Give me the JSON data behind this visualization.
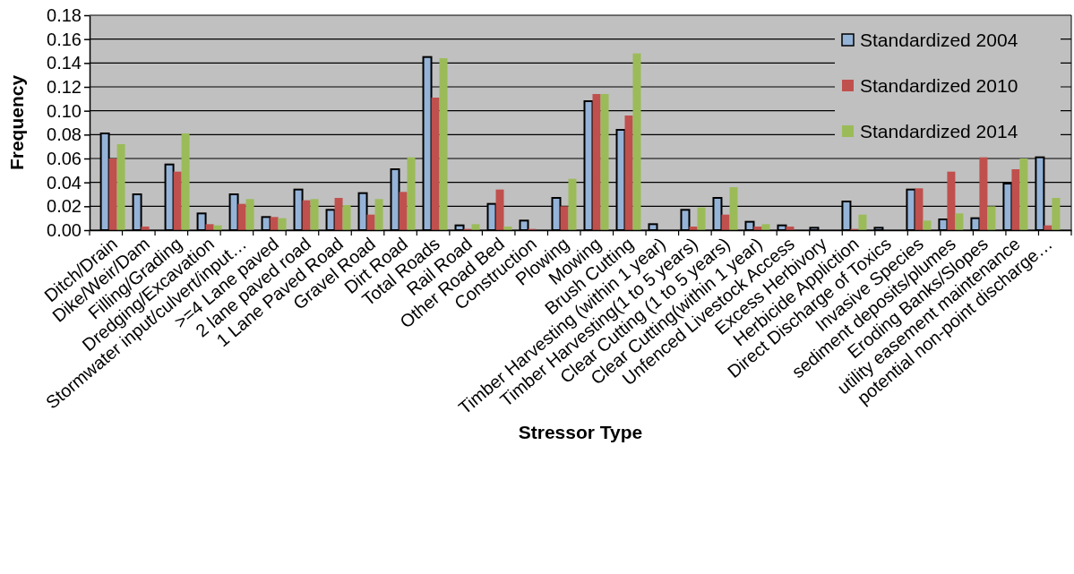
{
  "chart_data": {
    "type": "bar",
    "xlabel": "Stressor Type",
    "ylabel": "Frequency",
    "categories": [
      "Ditch/Drain",
      "Dike/Weir/Dam",
      "Filling/Grading",
      "Dredging/Excavation",
      "Stormwater input/culvert/input…",
      ">=4 Lane paved",
      "2 lane paved road",
      "1 Lane Paved Road",
      "Gravel Road",
      "Dirt Road",
      "Total Roads",
      "Rail Road",
      "Other Road Bed",
      "Construction",
      "Plowing",
      "Mowing",
      "Brush Cutting",
      "Timber Harvesting (within 1 year)",
      "Timber Harvesting(1 to 5 years)",
      "Clear Cutting (1 to 5 years)",
      "Clear Cutting(within 1 year)",
      "Unfenced Livestock Access",
      "Excess Herbivory",
      "Herbicide Appliction",
      "Direct Discharge of Toxics",
      "Invasive Species",
      "sediment deposits/plumes",
      "Eroding Banks/Slopes",
      "utility easement maintenance",
      "potential non-point discharge…"
    ],
    "series": [
      {
        "name": "Standardized 2004",
        "color": "#95b3d7",
        "values": [
          0.081,
          0.03,
          0.055,
          0.014,
          0.03,
          0.011,
          0.034,
          0.017,
          0.031,
          0.051,
          0.145,
          0.004,
          0.022,
          0.008,
          0.027,
          0.108,
          0.084,
          0.005,
          0.017,
          0.027,
          0.007,
          0.004,
          0.002,
          0.024,
          0.002,
          0.034,
          0.009,
          0.01,
          0.039,
          0.061
        ]
      },
      {
        "name": "Standardized 2010",
        "color": "#c0504d",
        "values": [
          0.06,
          0.003,
          0.049,
          0.005,
          0.022,
          0.011,
          0.025,
          0.027,
          0.013,
          0.032,
          0.111,
          0.001,
          0.034,
          0.001,
          0.02,
          0.114,
          0.096,
          0,
          0.003,
          0.013,
          0.003,
          0.003,
          0,
          0.001,
          0,
          0.035,
          0.049,
          0.061,
          0.051,
          0.004
        ]
      },
      {
        "name": "Standardized 2014",
        "color": "#9bbb59",
        "values": [
          0.072,
          0,
          0.081,
          0.004,
          0.026,
          0.01,
          0.026,
          0.021,
          0.026,
          0.061,
          0.144,
          0.005,
          0.003,
          0,
          0.043,
          0.114,
          0.148,
          0,
          0.019,
          0.036,
          0.005,
          0,
          0,
          0.013,
          0,
          0.008,
          0.014,
          0.02,
          0.06,
          0.027
        ]
      }
    ],
    "ylim": [
      0,
      0.18
    ],
    "yticks": [
      {
        "value": 0,
        "label": "0.00"
      },
      {
        "value": 0.02,
        "label": "0.02"
      },
      {
        "value": 0.04,
        "label": "0.04"
      },
      {
        "value": 0.06,
        "label": "0.06"
      },
      {
        "value": 0.08,
        "label": "0.08"
      },
      {
        "value": 0.1,
        "label": "0.10"
      },
      {
        "value": 0.12,
        "label": "0.12"
      },
      {
        "value": 0.14,
        "label": "0.14"
      },
      {
        "value": 0.16,
        "label": "0.16"
      },
      {
        "value": 0.18,
        "label": "0.18"
      }
    ],
    "grid": "y",
    "legend": "top right"
  }
}
